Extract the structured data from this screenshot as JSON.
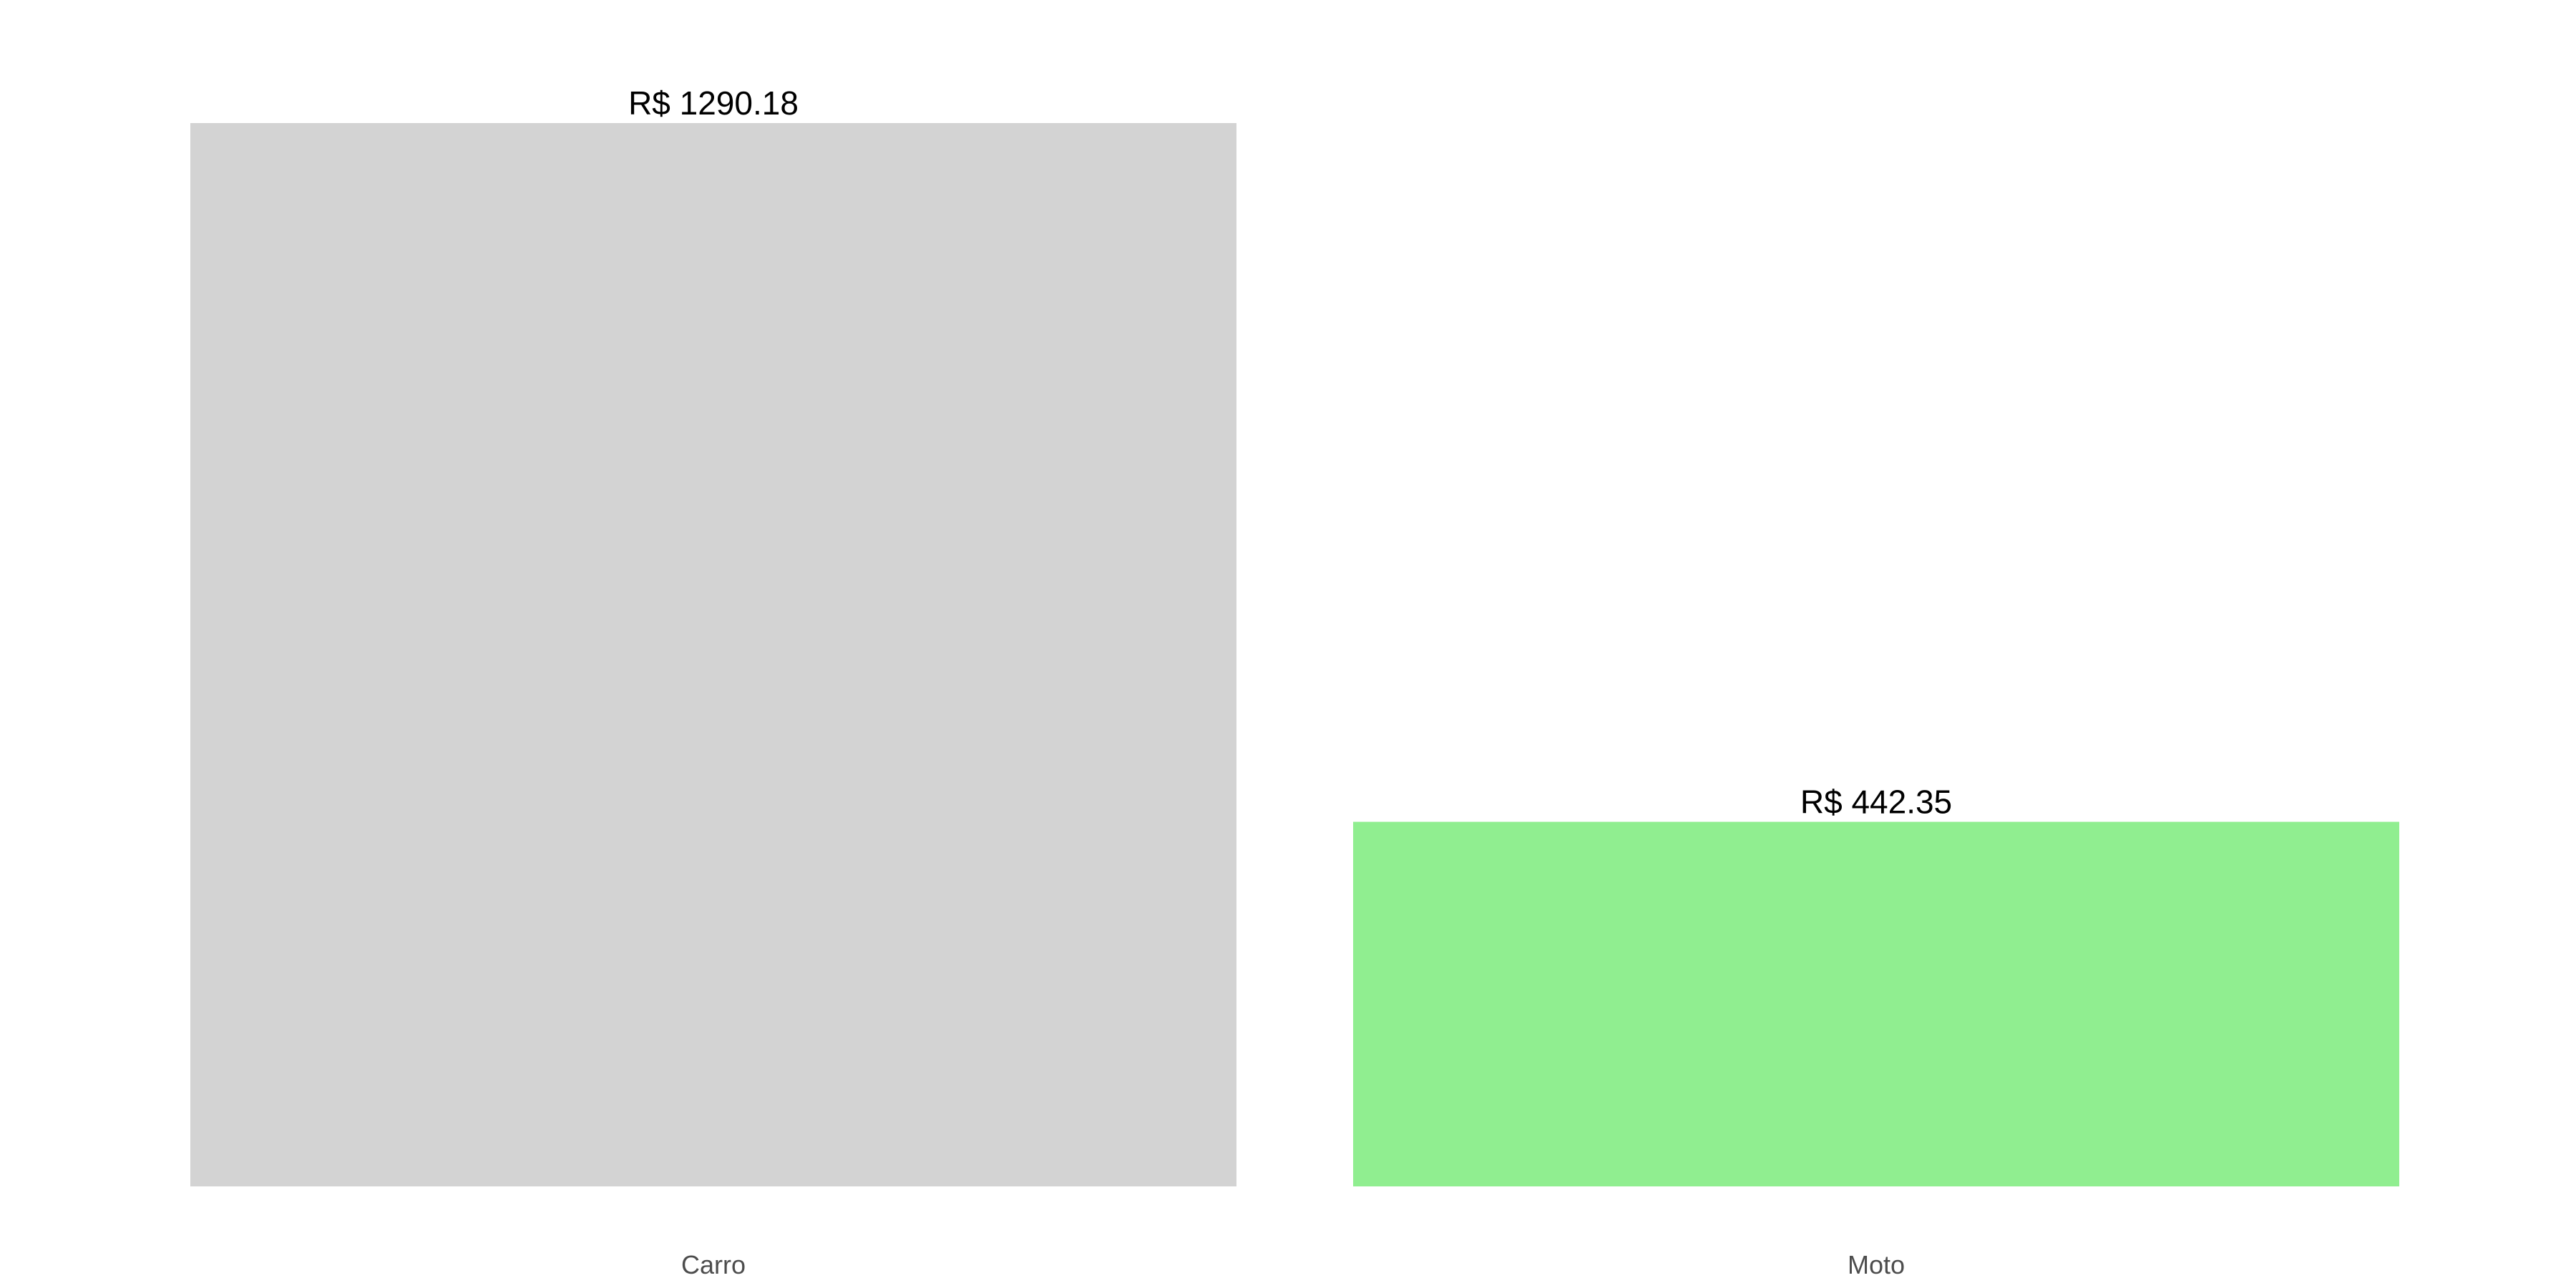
{
  "chart_data": {
    "type": "bar",
    "categories": [
      "Carro",
      "Moto"
    ],
    "values": [
      1290.18,
      442.35
    ],
    "data_labels": [
      "R$ 1290.18",
      "R$ 442.35"
    ],
    "colors": [
      "#d3d3d3",
      "#90ee90"
    ],
    "ylim": [
      0,
      1290.18
    ],
    "grid": false,
    "legend": "none",
    "title": "",
    "xlabel": "",
    "ylabel": ""
  }
}
